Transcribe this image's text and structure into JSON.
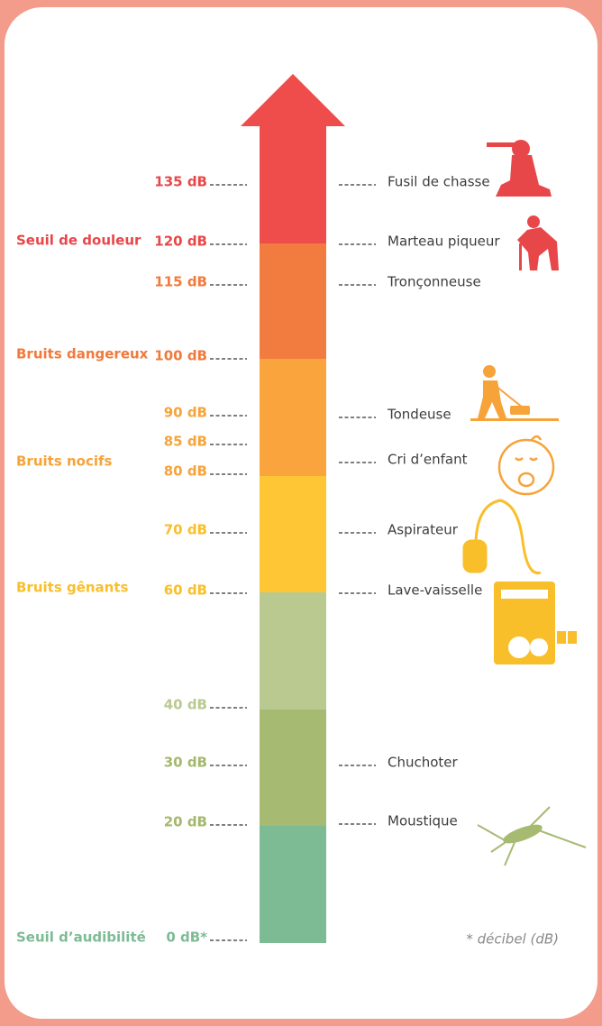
{
  "scale": [
    "135 dB",
    "120 dB",
    "115 dB",
    "100 dB",
    "90 dB",
    "85 dB",
    "80 dB",
    "70 dB",
    "60 dB",
    "40 dB",
    "30 dB",
    "20 dB",
    "0 dB*"
  ],
  "zones": [
    "Seuil de douleur",
    "Bruits dangereux",
    "Bruits nocifs",
    "Bruits gênants",
    "Seuil d’audibilité"
  ],
  "sources": [
    "Fusil de chasse",
    "Marteau piqueur",
    "Tronçonneuse",
    "Tondeuse",
    "Cri d’enfant",
    "Aspirateur",
    "Lave-vaisselle",
    "Chuchoter",
    "Moustique"
  ],
  "footnote": "* décibel (dB)"
}
